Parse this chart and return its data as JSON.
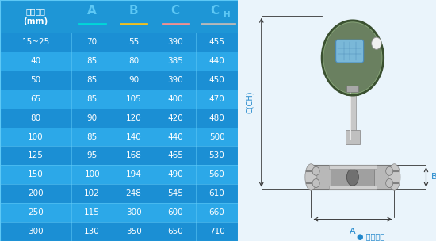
{
  "col_headers": [
    "仪表口径\n(mm)",
    "A",
    "B",
    "C",
    "CH"
  ],
  "rows": [
    [
      "15~25",
      "70",
      "55",
      "390",
      "455"
    ],
    [
      "40",
      "85",
      "80",
      "385",
      "440"
    ],
    [
      "50",
      "85",
      "90",
      "390",
      "450"
    ],
    [
      "65",
      "85",
      "105",
      "400",
      "470"
    ],
    [
      "80",
      "90",
      "120",
      "420",
      "480"
    ],
    [
      "100",
      "85",
      "140",
      "440",
      "500"
    ],
    [
      "125",
      "95",
      "168",
      "465",
      "530"
    ],
    [
      "150",
      "100",
      "194",
      "490",
      "560"
    ],
    [
      "200",
      "102",
      "248",
      "545",
      "610"
    ],
    [
      "250",
      "115",
      "300",
      "600",
      "660"
    ],
    [
      "300",
      "130",
      "350",
      "650",
      "710"
    ]
  ],
  "row_dark_color": "#1b8fd4",
  "row_light_color": "#2ca8e8",
  "header_bg": "#1e96d6",
  "header_line_colors": [
    "#00d8d8",
    "#f0c020",
    "#f09090",
    "#b8b8b8"
  ],
  "text_white": "#ffffff",
  "text_light_blue": "#5dc8f5",
  "border_color": "#6dd0f8",
  "note_text": "● 常规仪表",
  "note_color": "#2288cc",
  "bg_color": "#eaf4fb",
  "arrow_color": "#333333",
  "dim_label_color": "#2288cc",
  "transmitter_color": "#6a8060",
  "transmitter_edge": "#4a6040",
  "display_color": "#8ac8e8",
  "stem_color": "#c0c0c0",
  "flange_color": "#b8b8b8",
  "flange_dark": "#909090",
  "bolt_color": "#a0a0a0"
}
